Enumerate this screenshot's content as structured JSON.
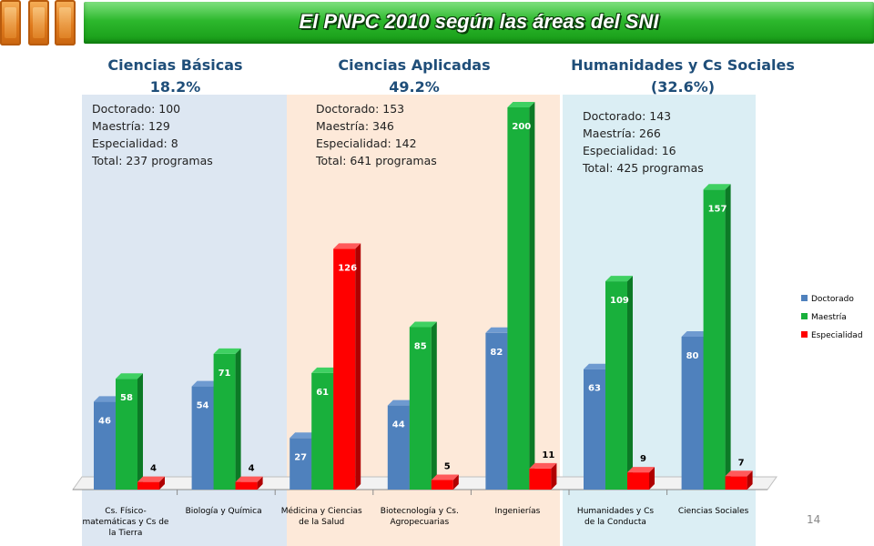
{
  "title": "El PNPC 2010 según las áreas del SNI",
  "page_number": "14",
  "colors": {
    "doctorado": "#4f81bd",
    "maestria": "#19b03c",
    "especialidad": "#ff0000",
    "panel_basicas": "#dde7f2",
    "panel_aplicadas": "#fde9d9",
    "panel_humanidades": "#dbeef4",
    "heading": "#1f4e79"
  },
  "areas": [
    {
      "title": "Ciencias Básicas",
      "percent": "18.2%",
      "summary": [
        "Doctorado: 100",
        "Maestría:  129",
        "Especialidad: 8",
        "Total: 237 programas"
      ]
    },
    {
      "title": "Ciencias Aplicadas",
      "percent": "49.2%",
      "summary": [
        "Doctorado: 153",
        "Maestría:  346",
        "Especialidad: 142",
        "Total: 641 programas"
      ]
    },
    {
      "title": "Humanidades  y Cs Sociales",
      "percent": "(32.6%)",
      "summary": [
        "Doctorado: 143",
        "Maestría:  266",
        "Especialidad: 16",
        "Total: 425 programas"
      ]
    }
  ],
  "chart_data": {
    "type": "bar",
    "categories": [
      [
        "Cs. Físico-",
        "matemáticas y Cs de",
        "la Tierra"
      ],
      [
        "Biología y Química"
      ],
      [
        "Médicina y Ciencias",
        "de la Salud"
      ],
      [
        "Biotecnología y Cs.",
        "Agropecuarias"
      ],
      [
        "Ingenierías"
      ],
      [
        "Humanidades y Cs",
        "de la Conducta"
      ],
      [
        "Ciencias Sociales"
      ]
    ],
    "series": [
      {
        "name": "Doctorado",
        "values": [
          46,
          54,
          27,
          44,
          82,
          63,
          80
        ]
      },
      {
        "name": "Maestría",
        "values": [
          58,
          71,
          61,
          85,
          200,
          109,
          157
        ]
      },
      {
        "name": "Especialidad",
        "values": [
          4,
          4,
          126,
          5,
          11,
          9,
          7
        ]
      }
    ],
    "ylim": [
      0,
      200
    ],
    "grid": false,
    "legend_position": "right",
    "data_labels": true
  }
}
